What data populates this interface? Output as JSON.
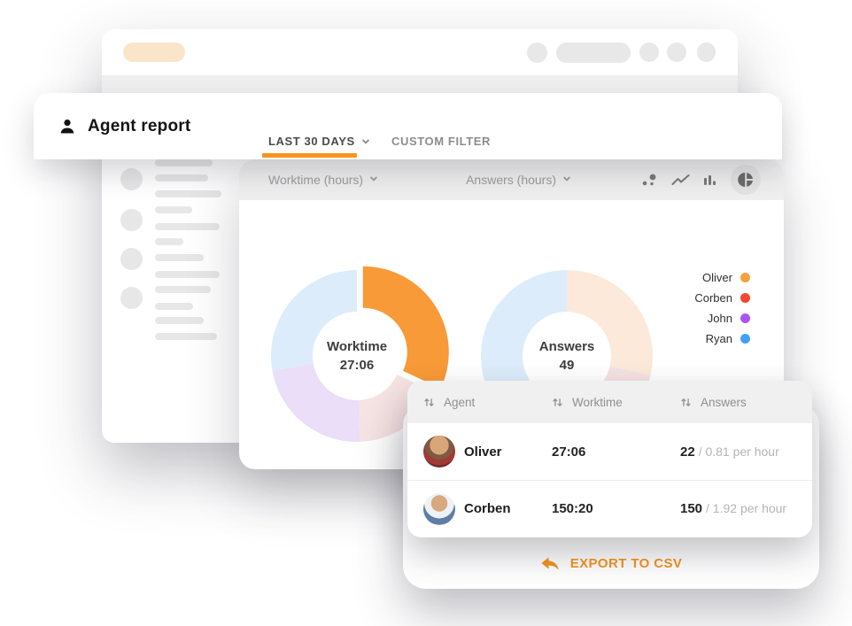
{
  "app": {
    "title": "Agent report",
    "tabs": [
      {
        "label": "LAST 30 DAYS",
        "active": true
      },
      {
        "label": "CUSTOM FILTER",
        "active": false
      }
    ]
  },
  "toolbar": {
    "metric_selectors": [
      {
        "label": "Worktime (hours)"
      },
      {
        "label": "Answers (hours)"
      }
    ],
    "chart_types": [
      "scatter",
      "line",
      "bar",
      "pie"
    ],
    "selected_chart_type": "pie"
  },
  "chart_data": [
    {
      "type": "pie",
      "title": "Worktime",
      "center_label": "Worktime",
      "center_value": "27:06",
      "slices": [
        {
          "label": "Oliver",
          "start_deg": 0,
          "end_deg": 115,
          "color": "#f89a38",
          "highlighted": true
        },
        {
          "label": "Corben",
          "start_deg": 115,
          "end_deg": 178,
          "color": "#f6e3e3",
          "highlighted": false
        },
        {
          "label": "John",
          "start_deg": 178,
          "end_deg": 260,
          "color": "#eadef8",
          "highlighted": false
        },
        {
          "label": "Ryan",
          "start_deg": 260,
          "end_deg": 360,
          "color": "#ddecfa",
          "highlighted": false
        }
      ]
    },
    {
      "type": "pie",
      "title": "Answers",
      "center_label": "Answers",
      "center_value": "49",
      "slices": [
        {
          "label": "Oliver",
          "start_deg": 0,
          "end_deg": 103,
          "color": "#fce9da",
          "highlighted": false
        },
        {
          "label": "Corben",
          "start_deg": 103,
          "end_deg": 168,
          "color": "#f6e2e2",
          "highlighted": false
        },
        {
          "label": "John",
          "start_deg": 168,
          "end_deg": 237,
          "color": "#9b4ef0",
          "highlighted": true
        },
        {
          "label": "Ryan",
          "start_deg": 237,
          "end_deg": 360,
          "color": "#ddecfa",
          "highlighted": false
        }
      ]
    }
  ],
  "legend": {
    "items": [
      {
        "label": "Oliver",
        "color": "#f7a03c"
      },
      {
        "label": "Corben",
        "color": "#f4472b"
      },
      {
        "label": "John",
        "color": "#a757f6"
      },
      {
        "label": "Ryan",
        "color": "#40a0f8"
      }
    ]
  },
  "table": {
    "columns": [
      "Agent",
      "Worktime",
      "Answers"
    ],
    "rows": [
      {
        "name": "Oliver",
        "worktime": "27:06",
        "answers": "22",
        "answers_rate": "/ 0.81 per hour"
      },
      {
        "name": "Corben",
        "worktime": "150:20",
        "answers": "150",
        "answers_rate": "/ 1.92 per hour"
      }
    ]
  },
  "footer": {
    "export_label": "EXPORT TO CSV"
  },
  "colors": {
    "accent": "#f7941e",
    "highlight_purple": "#9b4ef0"
  }
}
